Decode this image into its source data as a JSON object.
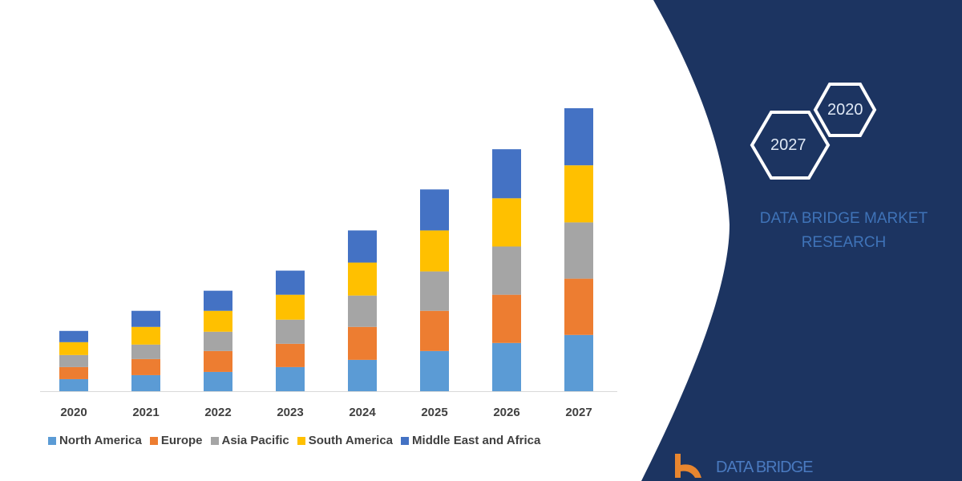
{
  "chart_data": {
    "type": "bar",
    "stacked": true,
    "categories": [
      "2020",
      "2021",
      "2022",
      "2023",
      "2024",
      "2025",
      "2026",
      "2027"
    ],
    "series": [
      {
        "name": "North America",
        "color": "#5b9bd5",
        "values": [
          15,
          20,
          24,
          30,
          39,
          50,
          60,
          70
        ]
      },
      {
        "name": "Europe",
        "color": "#ed7d31",
        "values": [
          15,
          20,
          26,
          29,
          41,
          50,
          60,
          70
        ]
      },
      {
        "name": "Asia Pacific",
        "color": "#a5a5a5",
        "values": [
          15,
          18,
          24,
          30,
          39,
          49,
          60,
          70
        ]
      },
      {
        "name": "South America",
        "color": "#ffc000",
        "values": [
          16,
          22,
          26,
          31,
          41,
          51,
          60,
          71
        ]
      },
      {
        "name": "Middle East and Africa",
        "color": "#4472c4",
        "values": [
          14,
          20,
          25,
          30,
          40,
          51,
          61,
          71
        ]
      }
    ],
    "title": "",
    "xlabel": "",
    "ylabel": "",
    "grid": false,
    "legend_position": "bottom"
  },
  "panel": {
    "background": "#1c3461",
    "hexagons": [
      "2020",
      "2027"
    ],
    "brand_line1": "DATA BRIDGE MARKET",
    "brand_line2": "RESEARCH",
    "logo_text": "DATA BRIDGE"
  }
}
